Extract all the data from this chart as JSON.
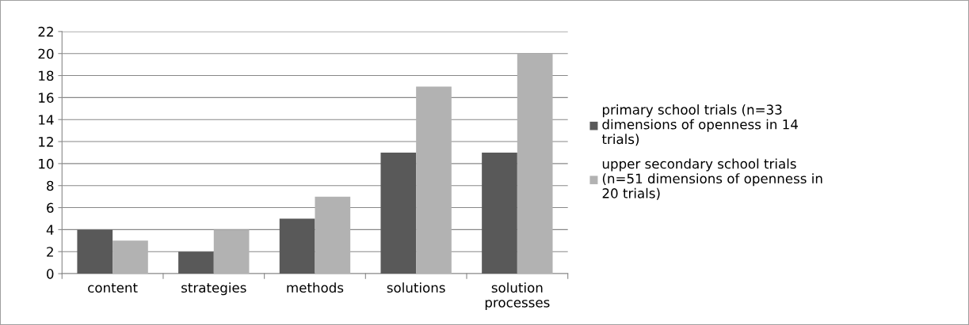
{
  "chart_data": {
    "type": "bar",
    "categories": [
      "content",
      "strategies",
      "methods",
      "solutions",
      "solution\nprocesses"
    ],
    "series": [
      {
        "name": "primary school trials (n=33\ndimensions of openness in 14\ntrials)",
        "color": "#595959",
        "values": [
          4,
          2,
          5,
          11,
          11
        ]
      },
      {
        "name": "upper secondary school trials\n(n=51 dimensions of openness in\n20 trials)",
        "color": "#b2b2b2",
        "values": [
          3,
          4,
          7,
          17,
          20
        ]
      }
    ],
    "ylim": [
      0,
      22
    ],
    "yticks": [
      0,
      2,
      4,
      6,
      8,
      10,
      12,
      14,
      16,
      18,
      20,
      22
    ],
    "grid": "y",
    "legend": "right"
  }
}
